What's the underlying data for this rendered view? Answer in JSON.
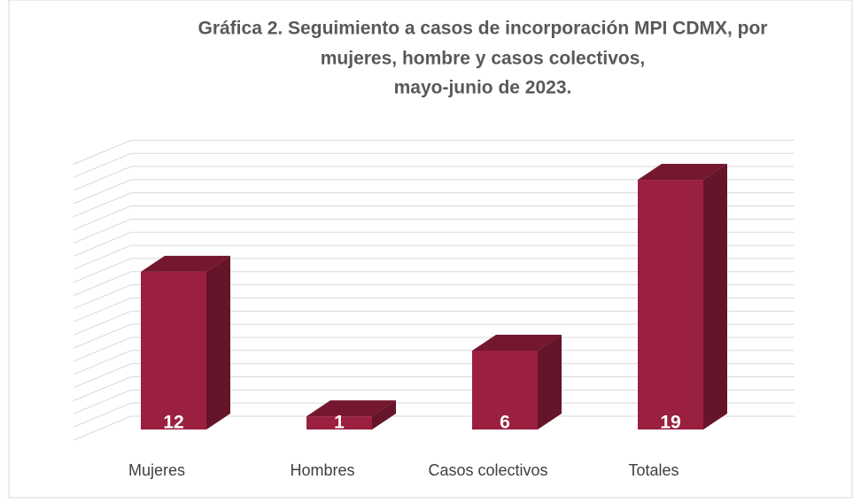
{
  "chart_data": {
    "type": "bar3d",
    "title": [
      "Gráfica 2. Seguimiento a casos de incorporación MPI CDMX, por",
      "mujeres, hombre y casos colectivos,",
      "mayo-junio de 2023."
    ],
    "categories": [
      "Mujeres",
      "Hombres",
      "Casos colectivos",
      "Totales"
    ],
    "values": [
      12,
      1,
      6,
      19
    ],
    "color": "#9b1f3f",
    "ylim": [
      0,
      21
    ],
    "yticks": [
      0,
      1,
      2,
      3,
      4,
      5,
      6,
      7,
      8,
      9,
      10,
      11,
      12,
      13,
      14,
      15,
      16,
      17,
      18,
      19,
      20,
      21
    ],
    "grid": true
  }
}
